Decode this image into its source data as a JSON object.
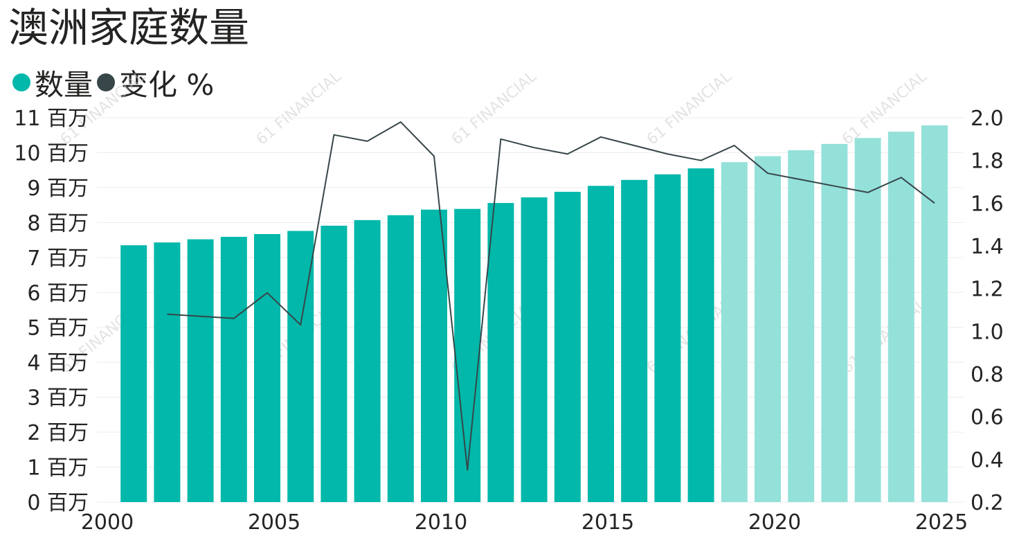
{
  "title": "澳洲家庭数量",
  "legend": [
    {
      "label": "数量",
      "color": "#01b8aa"
    },
    {
      "label": "变化 %",
      "color": "#374649"
    }
  ],
  "watermark": "61 FINANCIAL",
  "chart_data": {
    "type": "bar",
    "title": "澳洲家庭数量",
    "x": [
      2001,
      2002,
      2003,
      2004,
      2005,
      2006,
      2007,
      2008,
      2009,
      2010,
      2011,
      2012,
      2013,
      2014,
      2015,
      2016,
      2017,
      2018,
      2019,
      2020,
      2021,
      2022,
      2023,
      2024,
      2025
    ],
    "series": [
      {
        "name": "数量",
        "type": "bar",
        "axis": "left",
        "values": [
          7.35,
          7.43,
          7.52,
          7.59,
          7.67,
          7.76,
          7.91,
          8.07,
          8.21,
          8.37,
          8.39,
          8.56,
          8.72,
          8.88,
          9.05,
          9.22,
          9.38,
          9.55,
          9.73,
          9.9,
          10.07,
          10.25,
          10.42,
          10.6,
          10.78
        ],
        "forecast_from": 2019,
        "color": "#01b8aa",
        "forecast_color": "#94e1da"
      },
      {
        "name": "变化 %",
        "type": "line",
        "axis": "right",
        "x": [
          2002,
          2003,
          2004,
          2005,
          2006,
          2007,
          2008,
          2009,
          2010,
          2011,
          2012,
          2013,
          2014,
          2015,
          2016,
          2017,
          2018,
          2019,
          2020,
          2021,
          2022,
          2023,
          2024,
          2025
        ],
        "values": [
          1.08,
          1.07,
          1.06,
          1.18,
          1.03,
          1.92,
          1.89,
          1.98,
          1.82,
          0.35,
          1.9,
          1.86,
          1.83,
          1.91,
          1.87,
          1.83,
          1.8,
          1.87,
          1.74,
          1.71,
          1.68,
          1.65,
          1.72,
          1.6
        ],
        "color": "#374649"
      }
    ],
    "x_ticks": [
      "2000",
      "2005",
      "2010",
      "2015",
      "2020",
      "2025"
    ],
    "xlim": [
      2000,
      2025
    ],
    "y_left_ticks": [
      "0 百万",
      "1 百万",
      "2 百万",
      "3 百万",
      "4 百万",
      "5 百万",
      "6 百万",
      "7 百万",
      "8 百万",
      "9 百万",
      "10 百万",
      "11 百万"
    ],
    "ylim_left": [
      0,
      11
    ],
    "y_right_ticks": [
      "0.2",
      "0.4",
      "0.6",
      "0.8",
      "1.0",
      "1.2",
      "1.4",
      "1.6",
      "1.8",
      "2.0"
    ],
    "ylim_right": [
      0.2,
      2.0
    ],
    "grid": true
  }
}
